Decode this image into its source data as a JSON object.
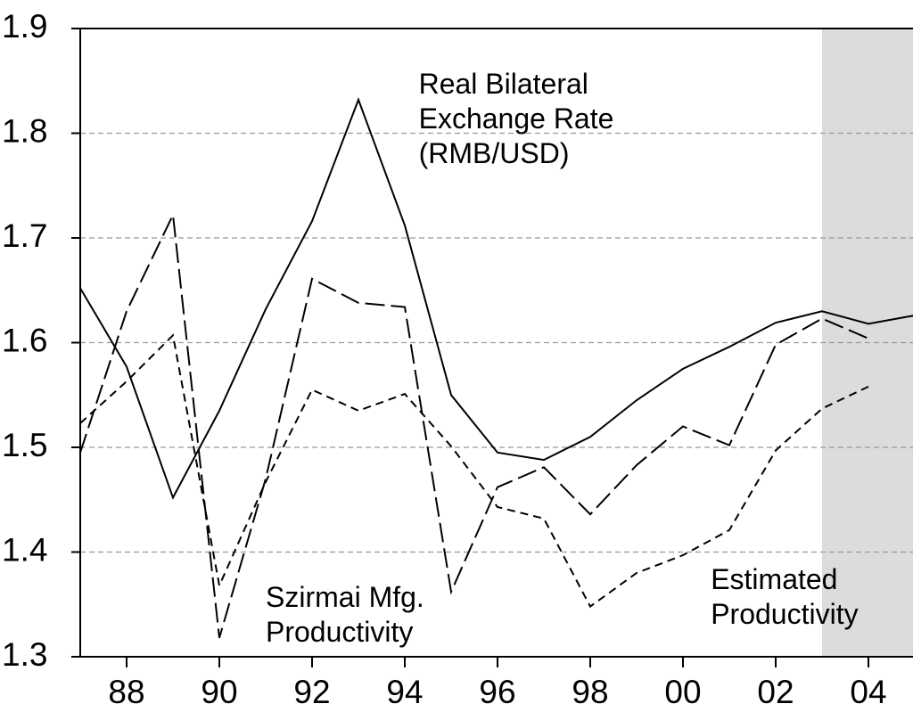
{
  "chart_data": {
    "type": "line",
    "x": [
      1987,
      1988,
      1989,
      1990,
      1991,
      1992,
      1993,
      1994,
      1995,
      1996,
      1997,
      1998,
      1999,
      2000,
      2001,
      2002,
      2003,
      2004,
      2005
    ],
    "series": [
      {
        "color": "#000000",
        "dash": "solid",
        "values": [
          1.652,
          1.577,
          1.452,
          1.535,
          1.632,
          1.716,
          1.832,
          1.712,
          1.55,
          1.495,
          1.488,
          1.51,
          1.545,
          1.575,
          1.596,
          1.619,
          1.63,
          1.618,
          1.626
        ]
      },
      {
        "color": "#000000",
        "dash": "long",
        "values": [
          1.495,
          1.63,
          1.722,
          1.318,
          1.47,
          1.661,
          1.638,
          1.634,
          1.362,
          1.462,
          1.481,
          1.436,
          1.483,
          1.52,
          1.502,
          1.598,
          1.623,
          1.604,
          null
        ]
      },
      {
        "color": "#000000",
        "dash": "short",
        "values": [
          1.523,
          1.563,
          1.607,
          1.368,
          1.467,
          1.555,
          1.535,
          1.551,
          1.501,
          1.443,
          1.432,
          1.348,
          1.38,
          1.397,
          1.421,
          1.497,
          1.537,
          1.558,
          null
        ]
      }
    ],
    "annotations": [
      {
        "lines": [
          "Real Bilateral",
          "Exchange Rate",
          "(RMB/USD)"
        ],
        "x": 1994.3,
        "y": 1.845
      },
      {
        "lines": [
          "Szirmai Mfg.",
          "Productivity"
        ],
        "x": 1991.0,
        "y": 1.355
      },
      {
        "lines": [
          "Estimated",
          "Productivity"
        ],
        "x": 2000.6,
        "y": 1.372
      }
    ],
    "shaded_from": 2003,
    "xlim": [
      1987,
      2005
    ],
    "ylim": [
      1.3,
      1.9
    ],
    "xticks": [
      {
        "value": 1988,
        "label": "88"
      },
      {
        "value": 1990,
        "label": "90"
      },
      {
        "value": 1992,
        "label": "92"
      },
      {
        "value": 1994,
        "label": "94"
      },
      {
        "value": 1996,
        "label": "96"
      },
      {
        "value": 1998,
        "label": "98"
      },
      {
        "value": 2000,
        "label": "00"
      },
      {
        "value": 2002,
        "label": "02"
      },
      {
        "value": 2004,
        "label": "04"
      }
    ],
    "yticks": [
      1.3,
      1.4,
      1.5,
      1.6,
      1.7,
      1.8,
      1.9
    ],
    "grid": true
  }
}
